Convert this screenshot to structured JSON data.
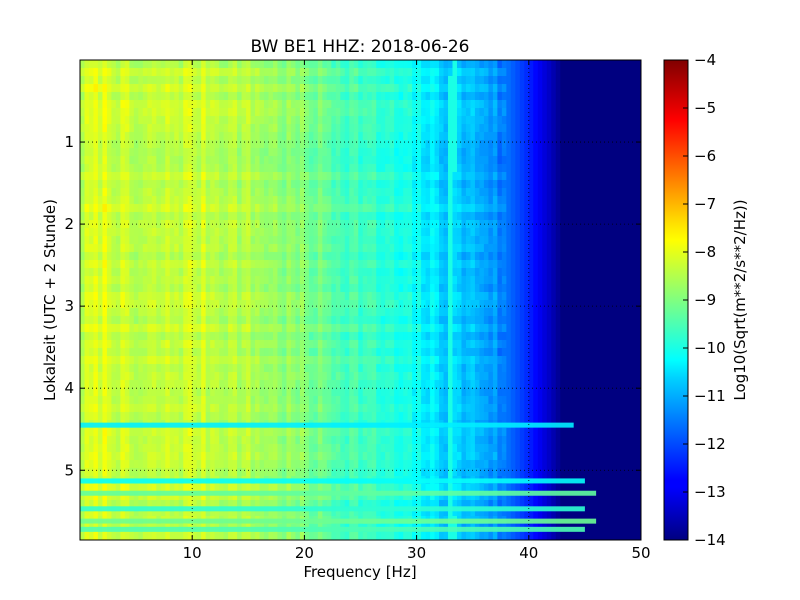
{
  "chart_data": {
    "type": "heatmap",
    "title": "BW BE1 HHZ: 2018-06-26",
    "xlabel": "Frequency [Hz]",
    "ylabel": "Lokalzeit (UTC + 2 Stunde)",
    "xlim": [
      0,
      50
    ],
    "ylim": [
      5.85,
      0.0
    ],
    "y_inverted": true,
    "x_ticks": [
      10,
      20,
      30,
      40,
      50
    ],
    "x_tick_labels": [
      "10",
      "20",
      "30",
      "40",
      "50"
    ],
    "y_ticks": [
      1,
      2,
      3,
      4,
      5
    ],
    "y_tick_labels": [
      "1",
      "2",
      "3",
      "4",
      "5"
    ],
    "grid": true,
    "colormap": "jet",
    "colorbar": {
      "label": "Log10(Sqrt(m**2/s**2/Hz))",
      "range": [
        -14,
        -4
      ],
      "ticks": [
        -4,
        -5,
        -6,
        -7,
        -8,
        -9,
        -10,
        -11,
        -12,
        -13,
        -14
      ],
      "tick_labels": [
        "−4",
        "−5",
        "−6",
        "−7",
        "−8",
        "−9",
        "−10",
        "−11",
        "−12",
        "−13",
        "−14"
      ]
    },
    "frequency_profile": {
      "x": [
        0,
        2,
        5,
        10,
        15,
        20,
        25,
        30,
        32,
        34,
        36,
        38,
        40,
        42,
        43,
        44,
        45,
        50
      ],
      "value": [
        -8.4,
        -8.0,
        -8.5,
        -8.2,
        -8.5,
        -9.0,
        -9.6,
        -10.2,
        -10.6,
        -10.8,
        -11.0,
        -11.6,
        -12.4,
        -13.4,
        -14.0,
        -14.0,
        -14.0,
        -14.0
      ]
    },
    "spectral_line": {
      "points": [
        [
          33.3,
          0.0
        ],
        [
          33.2,
          1.0
        ],
        [
          33.0,
          2.0
        ],
        [
          32.9,
          3.0
        ],
        [
          32.9,
          4.0
        ],
        [
          33.0,
          5.0
        ],
        [
          33.2,
          5.85
        ]
      ],
      "value": -10.0
    },
    "horizontal_bands": [
      {
        "time": 4.45,
        "value": -10.4,
        "x_max": 44
      },
      {
        "time": 5.13,
        "value": -10.2,
        "x_max": 45
      },
      {
        "time": 5.28,
        "value": -9.3,
        "x_max": 46
      },
      {
        "time": 5.47,
        "value": -9.8,
        "x_max": 45
      },
      {
        "time": 5.62,
        "value": -9.2,
        "x_max": 46
      },
      {
        "time": 5.72,
        "value": -9.5,
        "x_max": 45
      }
    ]
  }
}
